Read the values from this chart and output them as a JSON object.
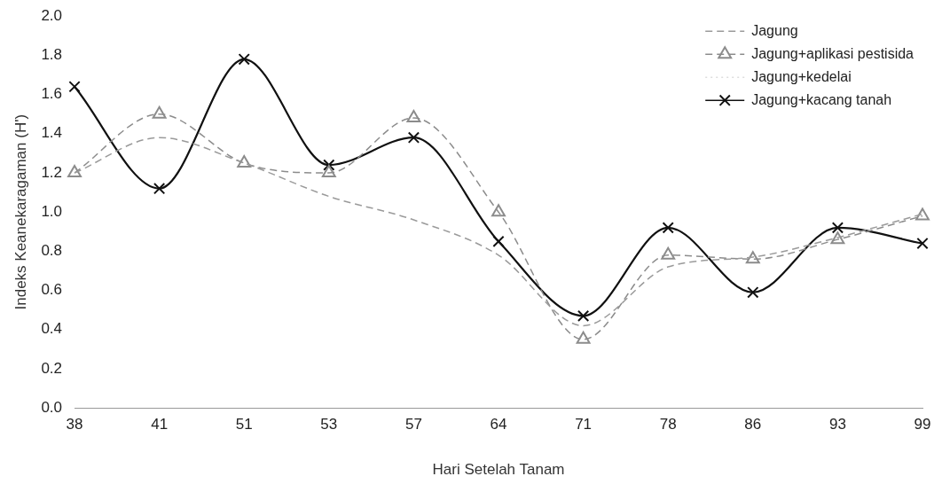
{
  "chart_data": {
    "type": "line",
    "xlabel": "Hari Setelah Tanam",
    "ylabel": "Indeks Keanekaragaman (H')",
    "categories": [
      "38",
      "41",
      "51",
      "53",
      "57",
      "64",
      "71",
      "78",
      "86",
      "93",
      "99"
    ],
    "series": [
      {
        "name": "Jagung",
        "color": "#9a9a9a",
        "line_style": "dashed",
        "marker": "none",
        "values": [
          1.2,
          1.38,
          1.25,
          1.08,
          0.96,
          0.78,
          0.42,
          0.72,
          0.77,
          0.87,
          0.99
        ]
      },
      {
        "name": "Jagung+aplikasi pestisida",
        "color": "#8c8c8c",
        "line_style": "dashed",
        "marker": "triangle",
        "values": [
          1.2,
          1.5,
          1.25,
          1.2,
          1.48,
          1.0,
          0.35,
          0.78,
          0.76,
          0.86,
          0.98
        ]
      },
      {
        "name": "Jagung+kedelai",
        "color": "#dddddd",
        "line_style": "dotted",
        "marker": "none",
        "values": [
          null,
          null,
          null,
          null,
          null,
          null,
          null,
          null,
          null,
          null,
          null
        ]
      },
      {
        "name": "Jagung+kacang tanah",
        "color": "#111111",
        "line_style": "solid",
        "marker": "cross",
        "values": [
          1.64,
          1.12,
          1.78,
          1.24,
          1.38,
          0.85,
          0.47,
          0.92,
          0.59,
          0.92,
          0.84
        ]
      }
    ],
    "ylim": [
      0,
      2
    ],
    "yticks": [
      {
        "value": 0,
        "label": "0.0"
      },
      {
        "value": 0.2,
        "label": "0.2"
      },
      {
        "value": 0.4,
        "label": "0.4"
      },
      {
        "value": 0.6,
        "label": "0.6"
      },
      {
        "value": 0.8,
        "label": "0.8"
      },
      {
        "value": 1.0,
        "label": "1.0"
      },
      {
        "value": 1.2,
        "label": "1.2"
      },
      {
        "value": 1.4,
        "label": "1.4"
      },
      {
        "value": 1.6,
        "label": "1.6"
      },
      {
        "value": 1.8,
        "label": "1.8"
      },
      {
        "value": 2.0,
        "label": "2.0"
      }
    ],
    "grid": false,
    "legend": "top right"
  }
}
